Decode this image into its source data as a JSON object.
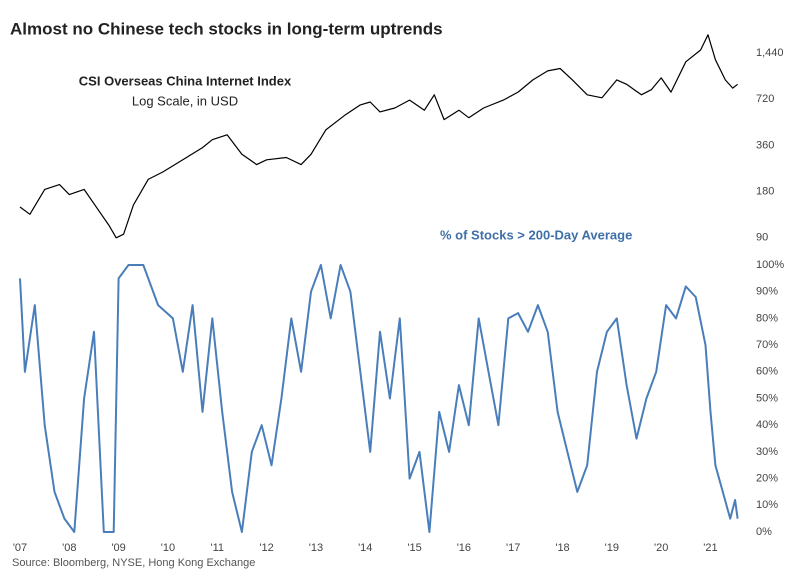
{
  "title": "Almost no Chinese tech stocks in long-term uptrends",
  "source": "Source: Bloomberg, NYSE, Hong Kong Exchange",
  "chart_data": [
    {
      "type": "line",
      "title": "CSI Overseas China Internet Index",
      "subtitle": "Log Scale, in USD",
      "log_scale": true,
      "grid": false,
      "color": "#000000",
      "xlim": [
        2007,
        2021.7
      ],
      "ylim": [
        75,
        2030
      ],
      "yticks": [
        90,
        180,
        360,
        720,
        {
          "value": 1440,
          "label": "1,440"
        }
      ],
      "x": [
        2007.0,
        2007.2,
        2007.5,
        2007.8,
        2008.0,
        2008.3,
        2008.6,
        2008.8,
        2008.95,
        2009.1,
        2009.3,
        2009.6,
        2009.9,
        2010.3,
        2010.7,
        2010.9,
        2011.2,
        2011.5,
        2011.8,
        2012.0,
        2012.4,
        2012.7,
        2012.9,
        2013.2,
        2013.6,
        2013.9,
        2014.1,
        2014.3,
        2014.6,
        2014.9,
        2015.2,
        2015.4,
        2015.6,
        2015.9,
        2016.1,
        2016.4,
        2016.8,
        2017.1,
        2017.4,
        2017.7,
        2017.95,
        2018.2,
        2018.5,
        2018.8,
        2019.1,
        2019.3,
        2019.6,
        2019.8,
        2020.0,
        2020.2,
        2020.5,
        2020.8,
        2020.95,
        2021.1,
        2021.3,
        2021.45,
        2021.55
      ],
      "values": [
        143,
        128,
        186,
        200,
        172,
        186,
        135,
        109,
        90,
        95,
        147,
        216,
        242,
        290,
        348,
        392,
        422,
        315,
        270,
        290,
        300,
        270,
        315,
        454,
        570,
        660,
        690,
        595,
        630,
        710,
        610,
        768,
        530,
        610,
        545,
        630,
        710,
        800,
        960,
        1100,
        1140,
        960,
        768,
        735,
        960,
        900,
        768,
        830,
        990,
        800,
        1260,
        1505,
        1890,
        1300,
        960,
        850,
        900
      ]
    },
    {
      "type": "line",
      "label": "% of Stocks > 200-Day Average",
      "grid": false,
      "color": "#4a7ebb",
      "xlim": [
        2007,
        2021.7
      ],
      "ylim": [
        0,
        100
      ],
      "yticks": [
        {
          "value": 0,
          "label": "0%"
        },
        {
          "value": 10,
          "label": "10%"
        },
        {
          "value": 20,
          "label": "20%"
        },
        {
          "value": 30,
          "label": "30%"
        },
        {
          "value": 40,
          "label": "40%"
        },
        {
          "value": 50,
          "label": "50%"
        },
        {
          "value": 60,
          "label": "60%"
        },
        {
          "value": 70,
          "label": "70%"
        },
        {
          "value": 80,
          "label": "80%"
        },
        {
          "value": 90,
          "label": "90%"
        },
        {
          "value": 100,
          "label": "100%"
        }
      ],
      "xticks": [
        {
          "value": 2007,
          "label": "'07"
        },
        {
          "value": 2008,
          "label": "'08"
        },
        {
          "value": 2009,
          "label": "'09"
        },
        {
          "value": 2010,
          "label": "'10"
        },
        {
          "value": 2011,
          "label": "'11"
        },
        {
          "value": 2012,
          "label": "'12"
        },
        {
          "value": 2013,
          "label": "'13"
        },
        {
          "value": 2014,
          "label": "'14"
        },
        {
          "value": 2015,
          "label": "'15"
        },
        {
          "value": 2016,
          "label": "'16"
        },
        {
          "value": 2017,
          "label": "'17"
        },
        {
          "value": 2018,
          "label": "'18"
        },
        {
          "value": 2019,
          "label": "'19"
        },
        {
          "value": 2020,
          "label": "'20"
        },
        {
          "value": 2021,
          "label": "'21"
        }
      ],
      "x": [
        2007.0,
        2007.1,
        2007.3,
        2007.5,
        2007.7,
        2007.9,
        2008.1,
        2008.3,
        2008.5,
        2008.7,
        2008.9,
        2009.0,
        2009.2,
        2009.5,
        2009.8,
        2010.1,
        2010.3,
        2010.5,
        2010.7,
        2010.9,
        2011.1,
        2011.3,
        2011.5,
        2011.7,
        2011.9,
        2012.1,
        2012.3,
        2012.5,
        2012.7,
        2012.9,
        2013.1,
        2013.3,
        2013.5,
        2013.7,
        2013.9,
        2014.1,
        2014.3,
        2014.5,
        2014.7,
        2014.9,
        2015.1,
        2015.3,
        2015.5,
        2015.7,
        2015.9,
        2016.1,
        2016.3,
        2016.5,
        2016.7,
        2016.9,
        2017.1,
        2017.3,
        2017.5,
        2017.7,
        2017.9,
        2018.1,
        2018.3,
        2018.5,
        2018.7,
        2018.9,
        2019.1,
        2019.3,
        2019.5,
        2019.7,
        2019.9,
        2020.1,
        2020.3,
        2020.5,
        2020.7,
        2020.9,
        2021.0,
        2021.1,
        2021.25,
        2021.4,
        2021.5,
        2021.55
      ],
      "values": [
        95,
        60,
        85,
        40,
        15,
        5,
        0,
        50,
        75,
        0,
        0,
        95,
        100,
        100,
        85,
        80,
        60,
        85,
        45,
        80,
        45,
        15,
        0,
        30,
        40,
        25,
        50,
        80,
        60,
        90,
        100,
        80,
        100,
        90,
        60,
        30,
        75,
        50,
        80,
        20,
        30,
        0,
        45,
        30,
        55,
        40,
        80,
        60,
        40,
        80,
        82,
        75,
        85,
        75,
        45,
        30,
        15,
        25,
        60,
        75,
        80,
        55,
        35,
        50,
        60,
        85,
        80,
        92,
        88,
        70,
        45,
        25,
        15,
        5,
        12,
        5
      ]
    }
  ]
}
